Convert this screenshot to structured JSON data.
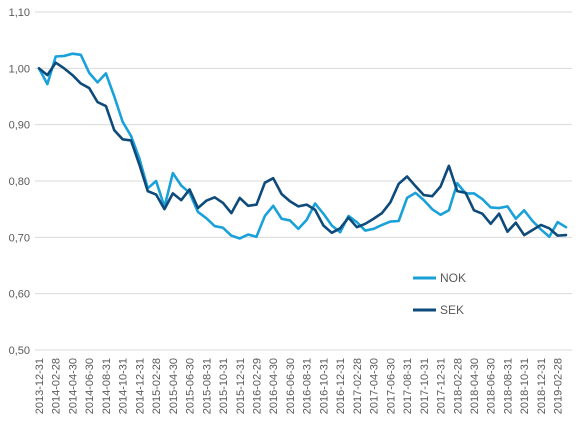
{
  "chart_data": {
    "type": "line",
    "ylim": [
      0.5,
      1.1
    ],
    "yticks": [
      "0,50",
      "0,60",
      "0,70",
      "0,80",
      "0,90",
      "1,00",
      "1,10"
    ],
    "x_tick_labels": [
      "2013-12-31",
      "2014-02-28",
      "2014-04-30",
      "2014-06-30",
      "2014-08-31",
      "2014-10-31",
      "2014-12-31",
      "2015-02-28",
      "2015-04-30",
      "2015-06-30",
      "2015-08-31",
      "2015-10-31",
      "2015-12-31",
      "2016-02-29",
      "2016-04-30",
      "2016-06-30",
      "2016-08-31",
      "2016-10-31",
      "2016-12-31",
      "2017-02-28",
      "2017-04-30",
      "2017-06-30",
      "2017-08-31",
      "2017-10-31",
      "2017-12-31",
      "2018-02-28",
      "2018-04-30",
      "2018-06-30",
      "2018-08-31",
      "2018-10-31",
      "2018-12-31",
      "2019-02-28"
    ],
    "grid": "horizontal",
    "legend_position": "right",
    "colors": {
      "NOK": "#1ba1d9",
      "SEK": "#0e4a7a",
      "grid": "#d9d9d9"
    },
    "series": [
      {
        "name": "NOK",
        "values": [
          1.0,
          0.972,
          1.021,
          1.022,
          1.026,
          1.024,
          0.992,
          0.975,
          0.991,
          0.95,
          0.905,
          0.88,
          0.84,
          0.787,
          0.8,
          0.754,
          0.814,
          0.792,
          0.779,
          0.745,
          0.734,
          0.72,
          0.717,
          0.703,
          0.698,
          0.705,
          0.701,
          0.738,
          0.756,
          0.733,
          0.73,
          0.715,
          0.731,
          0.76,
          0.742,
          0.721,
          0.709,
          0.738,
          0.727,
          0.712,
          0.715,
          0.722,
          0.728,
          0.729,
          0.77,
          0.779,
          0.766,
          0.75,
          0.74,
          0.748,
          0.796,
          0.778,
          0.778,
          0.768,
          0.753,
          0.752,
          0.755,
          0.733,
          0.748,
          0.729,
          0.714,
          0.701,
          0.727,
          0.718
        ]
      },
      {
        "name": "SEK",
        "values": [
          1.0,
          0.988,
          1.01,
          1.0,
          0.988,
          0.973,
          0.965,
          0.94,
          0.933,
          0.89,
          0.874,
          0.872,
          0.829,
          0.782,
          0.776,
          0.75,
          0.778,
          0.766,
          0.785,
          0.752,
          0.765,
          0.771,
          0.761,
          0.743,
          0.77,
          0.756,
          0.758,
          0.797,
          0.805,
          0.777,
          0.764,
          0.755,
          0.758,
          0.749,
          0.721,
          0.708,
          0.716,
          0.735,
          0.718,
          0.724,
          0.733,
          0.743,
          0.762,
          0.795,
          0.808,
          0.791,
          0.775,
          0.773,
          0.79,
          0.827,
          0.782,
          0.779,
          0.748,
          0.742,
          0.724,
          0.742,
          0.71,
          0.726,
          0.704,
          0.713,
          0.722,
          0.716,
          0.703,
          0.704
        ]
      }
    ]
  }
}
